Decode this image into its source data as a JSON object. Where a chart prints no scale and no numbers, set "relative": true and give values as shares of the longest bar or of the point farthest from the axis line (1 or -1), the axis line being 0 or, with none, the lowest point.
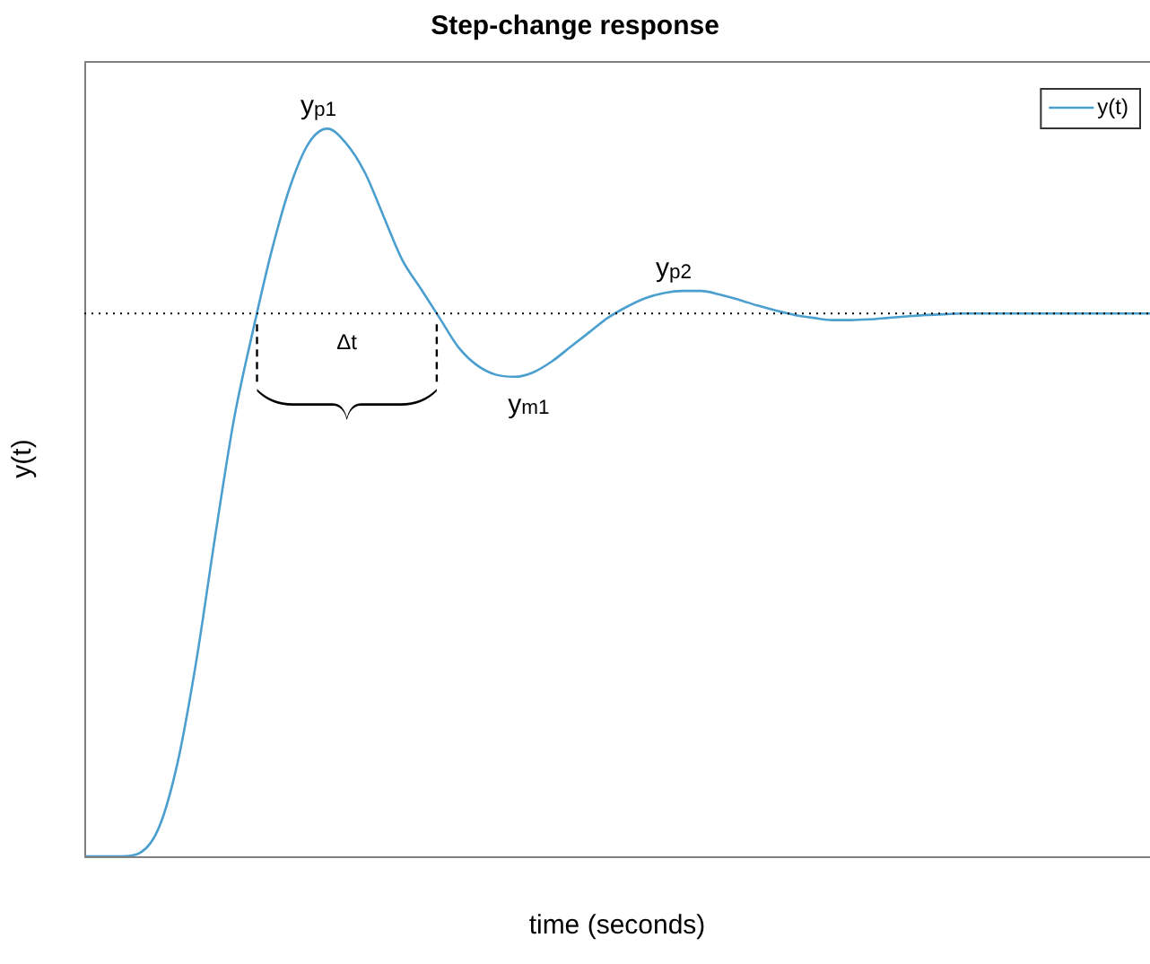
{
  "chart_data": {
    "type": "line",
    "title": "Step-change response",
    "xlabel": "time (seconds)",
    "ylabel": "y(t)",
    "relative": true,
    "categories": [
      null,
      null,
      null,
      null,
      null,
      null,
      null,
      null,
      null,
      null,
      null,
      null,
      null,
      null,
      null,
      null,
      null,
      null,
      null,
      null,
      null,
      null,
      null,
      null,
      null,
      null,
      null,
      null,
      null,
      null,
      null,
      null,
      null,
      null,
      null,
      null,
      null,
      null,
      null,
      null,
      null,
      null,
      null,
      null,
      null,
      null,
      null,
      null,
      null,
      null,
      null,
      null,
      null,
      null,
      null,
      null,
      null,
      null
    ],
    "series": [
      {
        "name": "y(t)",
        "color": "#4a9fcf",
        "values": [
          0,
          0,
          0,
          0.005,
          0.04,
          0.13,
          0.27,
          0.44,
          0.6,
          0.72,
          0.83,
          0.92,
          0.98,
          1,
          0.98,
          0.94,
          0.88,
          0.82,
          0.78,
          0.74,
          0.7,
          0.675,
          0.662,
          0.659,
          0.665,
          0.68,
          0.7,
          0.72,
          0.74,
          0.755,
          0.767,
          0.774,
          0.777,
          0.777,
          0.772,
          0.765,
          0.757,
          0.75,
          0.744,
          0.74,
          0.737,
          0.737,
          0.738,
          0.74,
          0.742,
          0.744,
          0.745,
          0.746,
          0.746,
          0.746,
          0.746,
          0.746,
          0.746,
          0.746,
          0.746,
          0.746,
          0.746,
          0.746
        ]
      }
    ],
    "ref_lines": [
      {
        "axis": "y",
        "value": 0.746,
        "color": "#000000",
        "line_style": "dotted"
      }
    ],
    "annotations": [
      {
        "text": "y$_{p1}$",
        "y": 1
      },
      {
        "text": "y$_{m1}$",
        "y": 0.659
      },
      {
        "text": "y$_{p2}$",
        "y": 0.777
      },
      "Δt"
    ],
    "legend": "top right",
    "marker": "none",
    "line_style": "solid",
    "grid": false
  }
}
